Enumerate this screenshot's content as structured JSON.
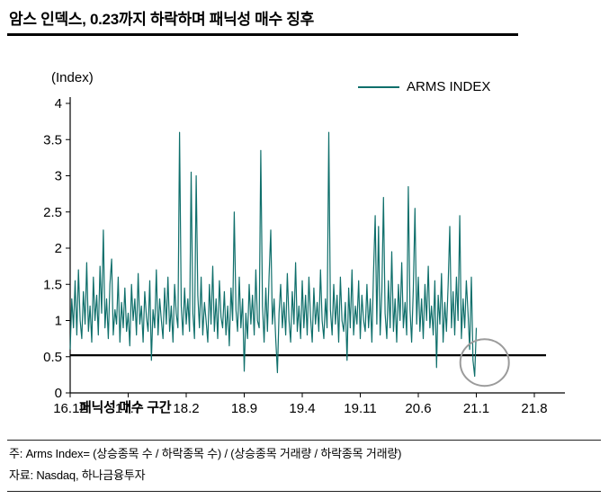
{
  "page": {
    "title": "암스 인덱스, 0.23까지 하락하며 패닉성 매수 징후",
    "footnote_line1": "주: Arms Index=  (상승종목 수 / 하락종목 수) / (상승종목 거래량 / 하락종목 거래량)",
    "footnote_line2": "자료: Nasdaq, 하나금융투자"
  },
  "chart": {
    "axis_unit_label": "(Index)",
    "legend_label": "ARMS INDEX",
    "panic_zone_label": "패닉성 매수 구간",
    "line_color": "#0f6f6b",
    "threshold_color": "#000000",
    "annotation_circle_color": "#9b9b9b"
  },
  "chart_data": {
    "type": "line",
    "title": "ARMS INDEX",
    "ylabel": "(Index)",
    "ylim": [
      0,
      4
    ],
    "yticks": [
      0,
      0.5,
      1,
      1.5,
      2,
      2.5,
      3,
      3.5,
      4
    ],
    "xticks": [
      "16.12",
      "17.7",
      "18.2",
      "18.9",
      "19.4",
      "19.11",
      "20.6",
      "21.1",
      "21.8"
    ],
    "x_tick_interval_months": 7,
    "x_axis_span_months": 56,
    "data_span_months": 49,
    "grid": false,
    "legend_position": "top",
    "threshold_line_y": 0.52,
    "min_annotation_value": 0.23,
    "circle_annotation": {
      "month": 50,
      "value": 0.42
    },
    "values": [
      0.6,
      1.3,
      0.9,
      1.55,
      0.8,
      1.7,
      1.0,
      0.75,
      1.4,
      0.95,
      1.8,
      0.85,
      1.2,
      0.7,
      1.6,
      1.0,
      1.35,
      0.8,
      1.75,
      1.1,
      2.25,
      0.9,
      1.3,
      0.75,
      1.5,
      1.85,
      0.8,
      1.15,
      0.95,
      1.6,
      0.7,
      1.25,
      0.9,
      1.45,
      0.85,
      1.1,
      0.65,
      1.5,
      1.0,
      1.3,
      0.8,
      1.65,
      0.95,
      1.2,
      0.7,
      1.4,
      1.05,
      0.85,
      1.55,
      0.45,
      1.15,
      0.9,
      1.7,
      0.8,
      1.3,
      1.0,
      0.75,
      1.45,
      0.95,
      1.6,
      0.85,
      1.2,
      0.7,
      1.5,
      1.1,
      0.9,
      3.6,
      1.2,
      0.8,
      1.45,
      0.95,
      1.3,
      0.85,
      3.05,
      1.1,
      0.75,
      3.0,
      1.35,
      0.9,
      1.6,
      0.8,
      1.25,
      1.0,
      0.7,
      1.5,
      0.95,
      1.75,
      0.85,
      1.3,
      0.75,
      1.55,
      1.05,
      0.9,
      1.4,
      0.8,
      1.2,
      0.65,
      1.45,
      1.0,
      2.5,
      1.15,
      0.85,
      1.6,
      0.9,
      1.3,
      0.3,
      1.1,
      0.75,
      1.5,
      0.95,
      1.35,
      0.8,
      1.7,
      1.0,
      0.9,
      3.35,
      1.2,
      0.7,
      1.45,
      0.85,
      1.6,
      2.25,
      0.95,
      1.3,
      0.75,
      0.28,
      1.1,
      1.5,
      0.9,
      1.25,
      0.8,
      1.65,
      1.0,
      0.7,
      1.4,
      0.95,
      1.8,
      0.85,
      1.2,
      0.75,
      1.55,
      0.9,
      1.35,
      0.8,
      1.6,
      1.05,
      0.7,
      1.45,
      0.95,
      1.25,
      0.85,
      1.7,
      1.0,
      0.75,
      1.3,
      0.9,
      3.6,
      1.15,
      0.8,
      1.5,
      0.95,
      1.35,
      0.7,
      1.6,
      1.0,
      0.85,
      1.25,
      0.45,
      1.45,
      0.9,
      1.7,
      0.8,
      1.2,
      0.95,
      1.55,
      0.75,
      1.35,
      1.0,
      0.85,
      1.5,
      0.9,
      1.3,
      0.7,
      1.65,
      2.45,
      0.95,
      2.3,
      0.8,
      1.4,
      2.7,
      1.1,
      0.75,
      1.55,
      0.9,
      1.95,
      0.85,
      1.3,
      0.7,
      1.5,
      1.0,
      1.8,
      0.9,
      1.25,
      0.8,
      2.85,
      1.15,
      0.7,
      1.45,
      2.55,
      0.95,
      1.6,
      0.85,
      1.3,
      0.75,
      1.5,
      1.0,
      1.75,
      0.9,
      1.2,
      0.8,
      1.55,
      0.35,
      1.35,
      0.95,
      1.65,
      0.7,
      1.25,
      0.85,
      1.5,
      2.3,
      0.9,
      1.4,
      0.8,
      1.6,
      1.0,
      2.45,
      0.75,
      1.3,
      0.9,
      1.55,
      1.1,
      0.6,
      1.6,
      0.45,
      0.23,
      0.9
    ]
  }
}
